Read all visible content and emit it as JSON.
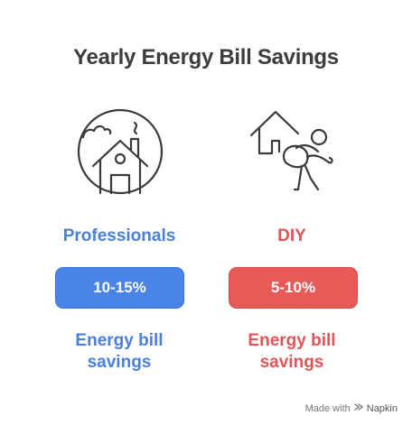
{
  "title": "Yearly Energy Bill Savings",
  "columns": [
    {
      "label": "Professionals",
      "icon": "house-with-globe-icon",
      "value": "10-15%",
      "desc_line1": "Energy bill",
      "desc_line2": "savings",
      "color": "#4a7fdc",
      "badge_color": "#4a84e6"
    },
    {
      "label": "DIY",
      "icon": "person-carrying-house-icon",
      "value": "5-10%",
      "desc_line1": "Energy bill",
      "desc_line2": "savings",
      "color": "#e05555",
      "badge_color": "#e85a58"
    }
  ],
  "footer": {
    "made_with": "Made with",
    "brand": "Napkin"
  }
}
